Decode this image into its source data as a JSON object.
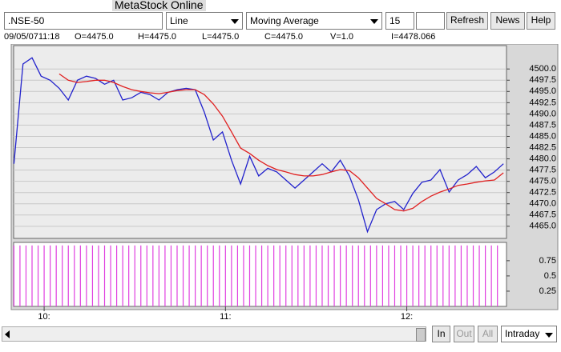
{
  "window_title": "MetaStock Online",
  "toolbar": {
    "symbol": ".NSE-50",
    "chart_style": "Line",
    "indicator": "Moving Average",
    "period": "15",
    "buttons": [
      "Refresh",
      "News",
      "Help"
    ]
  },
  "info_bar": [
    "09/05/0711:18",
    "O=4475.0",
    "H=4475.0",
    "L=4475.0",
    "C=4475.0",
    "V=1.0",
    "I=4478.066"
  ],
  "chart_data": [
    {
      "type": "line",
      "x": [
        590,
        593,
        596,
        599,
        602,
        605,
        608,
        611,
        614,
        617,
        620,
        623,
        626,
        629,
        632,
        635,
        638,
        641,
        644,
        647,
        650,
        653,
        656,
        659,
        662,
        665,
        668,
        671,
        674,
        677,
        680,
        683,
        686,
        689,
        692,
        695,
        698,
        701,
        704,
        707,
        710,
        713,
        716,
        719,
        722,
        725,
        728,
        731,
        734,
        737,
        740,
        743,
        746,
        749,
        752
      ],
      "series": [
        {
          "color": "#2222cc",
          "values": [
            4478.9,
            4501.1,
            4502.5,
            4498.4,
            4497.5,
            4495.7,
            4493.1,
            4497.5,
            4498.4,
            4497.9,
            4496.6,
            4497.5,
            4493.1,
            4493.6,
            4494.8,
            4494.3,
            4493.1,
            4494.8,
            4495.4,
            4495.7,
            4495.4,
            4490.4,
            4484.2,
            4486.0,
            4479.7,
            4474.4,
            4480.6,
            4476.2,
            4477.9,
            4477.1,
            4475.3,
            4473.5,
            4475.3,
            4477.1,
            4478.9,
            4477.1,
            4479.7,
            4476.2,
            4470.9,
            4463.8,
            4468.7,
            4470.0,
            4470.5,
            4468.7,
            4472.3,
            4474.8,
            4475.3,
            4477.6,
            4472.6,
            4475.3,
            4476.5,
            4478.3,
            4475.8,
            4477.1,
            4478.9
          ]
        },
        {
          "color": "#e02020",
          "values": [
            null,
            null,
            null,
            null,
            null,
            4498.9,
            4497.5,
            4497.0,
            4497.2,
            4497.5,
            4497.5,
            4497.0,
            4496.1,
            4495.4,
            4495.0,
            4494.7,
            4494.5,
            4494.8,
            4495.2,
            4495.4,
            4495.4,
            4494.3,
            4492.2,
            4489.5,
            4486.0,
            4482.4,
            4481.2,
            4479.7,
            4478.5,
            4477.6,
            4477.1,
            4476.5,
            4476.2,
            4476.2,
            4476.5,
            4477.1,
            4477.6,
            4477.4,
            4475.8,
            4473.5,
            4471.2,
            4470.0,
            4468.7,
            4468.4,
            4469.0,
            4470.5,
            4471.7,
            4472.6,
            4473.3,
            4474.1,
            4474.4,
            4474.8,
            4475.1,
            4475.3,
            4476.9
          ]
        }
      ],
      "xlim": [
        589.9,
        753
      ],
      "ylim": [
        4462.3,
        4505.2
      ],
      "yticks": [
        {
          "value": 4465,
          "label": "4465.0"
        },
        {
          "value": 4467.5,
          "label": "4467.5"
        },
        {
          "value": 4470,
          "label": "4470.0"
        },
        {
          "value": 4472.5,
          "label": "4472.5"
        },
        {
          "value": 4475,
          "label": "4475.0"
        },
        {
          "value": 4477.5,
          "label": "4477.5"
        },
        {
          "value": 4480,
          "label": "4480.0"
        },
        {
          "value": 4482.5,
          "label": "4482.5"
        },
        {
          "value": 4485,
          "label": "4485.0"
        },
        {
          "value": 4487.5,
          "label": "4487.5"
        },
        {
          "value": 4490,
          "label": "4490.0"
        },
        {
          "value": 4492.5,
          "label": "4492.5"
        },
        {
          "value": 4495,
          "label": "4495.0"
        },
        {
          "value": 4497.5,
          "label": "4497.5"
        },
        {
          "value": 4500,
          "label": "4500.0"
        }
      ],
      "grid": true
    },
    {
      "type": "bar",
      "x": [
        590,
        592,
        594,
        596,
        598,
        600,
        602,
        604,
        606,
        608,
        610,
        612,
        614,
        616,
        618,
        620,
        622,
        624,
        626,
        628,
        630,
        632,
        634,
        636,
        638,
        640,
        642,
        644,
        646,
        648,
        650,
        652,
        654,
        656,
        658,
        660,
        662,
        664,
        666,
        668,
        670,
        672,
        674,
        676,
        678,
        680,
        682,
        684,
        686,
        688,
        690,
        692,
        694,
        696,
        698,
        700,
        702,
        704,
        706,
        708,
        710,
        712,
        714,
        716,
        718,
        720,
        722,
        724,
        726,
        728,
        730,
        732,
        734,
        736,
        738,
        740,
        742,
        744,
        746,
        748,
        750
      ],
      "values": [
        1,
        1,
        1,
        1,
        1,
        1,
        1,
        1,
        1,
        1,
        1,
        1,
        1,
        1,
        1,
        1,
        1,
        1,
        1,
        1,
        1,
        1,
        1,
        1,
        1,
        1,
        1,
        1,
        1,
        1,
        1,
        1,
        1,
        1,
        1,
        1,
        1,
        1,
        1,
        1,
        1,
        1,
        1,
        1,
        1,
        1,
        1,
        1,
        1,
        1,
        1,
        1,
        1,
        1,
        1,
        1,
        1,
        1,
        1,
        1,
        1,
        1,
        1,
        1,
        1,
        1,
        1,
        1,
        1,
        1,
        1,
        1,
        1,
        1,
        1,
        1,
        1,
        1,
        1,
        1,
        1
      ],
      "color": "#e040e0",
      "xlim": [
        589.9,
        753
      ],
      "ylim": [
        0,
        1.05
      ],
      "yticks": [
        0.25,
        0.5,
        0.75
      ],
      "xticks": [
        {
          "value": 600,
          "label": "10:"
        },
        {
          "value": 660,
          "label": "11:"
        },
        {
          "value": 720,
          "label": "12:"
        }
      ]
    }
  ],
  "footer": {
    "buttons": [
      "In",
      "Out",
      "All"
    ],
    "interval": "Intraday"
  }
}
